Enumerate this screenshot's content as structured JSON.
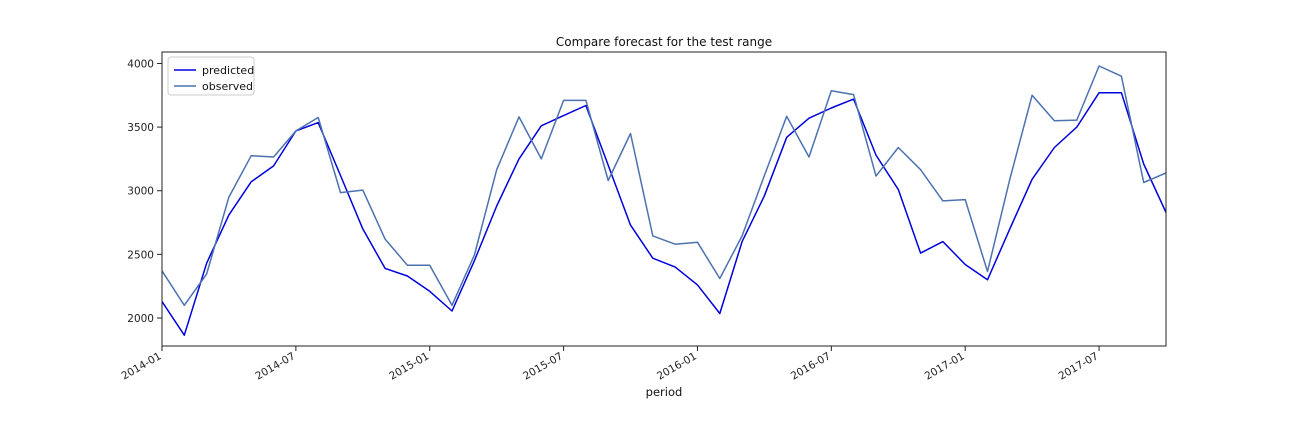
{
  "chart_data": {
    "type": "line",
    "title": "Compare forecast for the test range",
    "xlabel": "period",
    "ylabel": "",
    "ylim": [
      1780,
      4090
    ],
    "yticks": [
      2000,
      2500,
      3000,
      3500,
      4000
    ],
    "xticks": [
      "2014-01",
      "2014-07",
      "2015-01",
      "2015-07",
      "2016-01",
      "2016-07",
      "2017-01",
      "2017-07"
    ],
    "x_start": "2014-01",
    "x_end": "2017-10",
    "legend_position": "top-left",
    "grid": false,
    "series": [
      {
        "name": "predicted",
        "color": "#0000dd",
        "values": [
          2130,
          1865,
          2430,
          2810,
          3070,
          3195,
          3470,
          3535,
          3120,
          2700,
          2390,
          2330,
          2210,
          2055,
          2450,
          2880,
          3250,
          3510,
          3590,
          3670,
          3200,
          2730,
          2470,
          2400,
          2260,
          2035,
          2600,
          2960,
          3420,
          3570,
          3650,
          3720,
          3280,
          3010,
          2510,
          2600,
          2420,
          2300,
          2700,
          3090,
          3340,
          3500,
          3770,
          3770,
          3210,
          2830
        ]
      },
      {
        "name": "observed",
        "color": "#4c72b0",
        "values": [
          2370,
          2100,
          2345,
          2950,
          3275,
          3265,
          3470,
          3575,
          2985,
          3005,
          2620,
          2415,
          2415,
          2100,
          2495,
          3165,
          3580,
          3250,
          3710,
          3710,
          3080,
          3450,
          2645,
          2580,
          2595,
          2310,
          2645,
          3120,
          3585,
          3265,
          3785,
          3755,
          3115,
          3340,
          3165,
          2920,
          2930,
          2365,
          3090,
          3750,
          3550,
          3555,
          3980,
          3900,
          3065,
          3140
        ]
      }
    ]
  }
}
